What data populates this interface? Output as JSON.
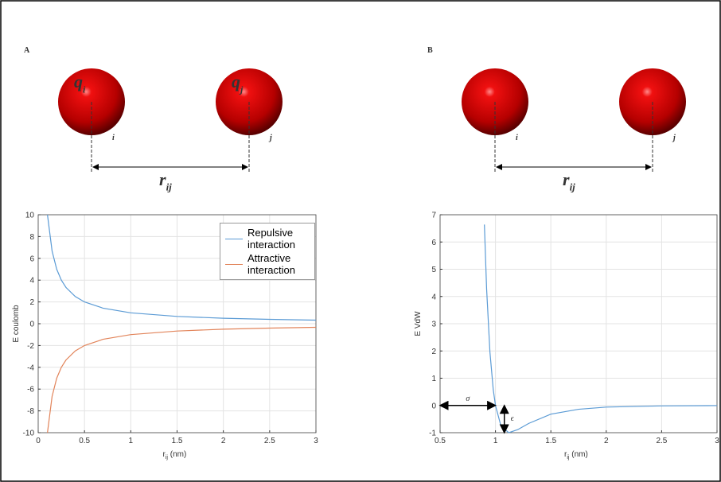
{
  "diagrams": [
    {
      "label": "A",
      "atoms": [
        {
          "name": "i",
          "charge": {
            "main": "q",
            "sub": "i"
          }
        },
        {
          "name": "j",
          "charge": {
            "main": "q",
            "sub": "j"
          }
        }
      ],
      "distance": {
        "main": "r",
        "sub": "ij"
      }
    },
    {
      "label": "B",
      "atoms": [
        {
          "name": "i"
        },
        {
          "name": "j"
        }
      ],
      "distance": {
        "main": "r",
        "sub": "ij"
      }
    }
  ],
  "chart_data": [
    {
      "type": "line",
      "ylabel": "E coulomb",
      "xlabel": {
        "main": "r",
        "sub": "ij",
        "rest": " (nm)"
      },
      "x": [
        0.1,
        0.15,
        0.2,
        0.25,
        0.3,
        0.4,
        0.5,
        0.7,
        1,
        1.5,
        2,
        2.5,
        3
      ],
      "series": [
        {
          "name": "Repulsive interaction",
          "color": "#5b9bd5",
          "values": [
            10,
            6.67,
            5,
            4,
            3.33,
            2.5,
            2,
            1.43,
            1,
            0.67,
            0.5,
            0.4,
            0.33
          ]
        },
        {
          "name": "Attractive interaction",
          "color": "#e2845a",
          "values": [
            -10,
            -6.67,
            -5,
            -4,
            -3.33,
            -2.5,
            -2,
            -1.43,
            -1,
            -0.67,
            -0.5,
            -0.4,
            -0.33
          ]
        }
      ],
      "xlim": [
        0,
        3
      ],
      "xticks": [
        0,
        0.5,
        1,
        1.5,
        2,
        2.5,
        3
      ],
      "ylim": [
        -10,
        10
      ],
      "yticks": [
        -10,
        -8,
        -6,
        -4,
        -2,
        0,
        2,
        4,
        6,
        8,
        10
      ],
      "grid": true,
      "legend": "top-right"
    },
    {
      "type": "line",
      "ylabel": "E VdW",
      "xlabel": {
        "main": "r",
        "sub": "ij",
        "rest": " (nm)"
      },
      "x": [
        0.9,
        0.92,
        0.95,
        0.98,
        1.0,
        1.05,
        1.12,
        1.2,
        1.3,
        1.5,
        1.75,
        2,
        2.5,
        3
      ],
      "series": [
        {
          "color": "#5b9bd5",
          "values": [
            6.64,
            4.28,
            1.96,
            0.58,
            0,
            -0.76,
            -1,
            -0.89,
            -0.66,
            -0.32,
            -0.14,
            -0.06,
            -0.016,
            -0.005
          ]
        }
      ],
      "xlim": [
        0.5,
        3
      ],
      "xticks": [
        0.5,
        1,
        1.5,
        2,
        2.5,
        3
      ],
      "ylim": [
        -1,
        7
      ],
      "yticks": [
        -1,
        0,
        1,
        2,
        3,
        4,
        5,
        6,
        7
      ],
      "grid": true,
      "annotations": [
        {
          "text": "σ",
          "x": [
            0.5,
            1
          ],
          "y": [
            0,
            0
          ]
        },
        {
          "text": "ϵ",
          "x": [
            1.08,
            1.08
          ],
          "y": [
            0,
            -1
          ]
        }
      ]
    }
  ]
}
